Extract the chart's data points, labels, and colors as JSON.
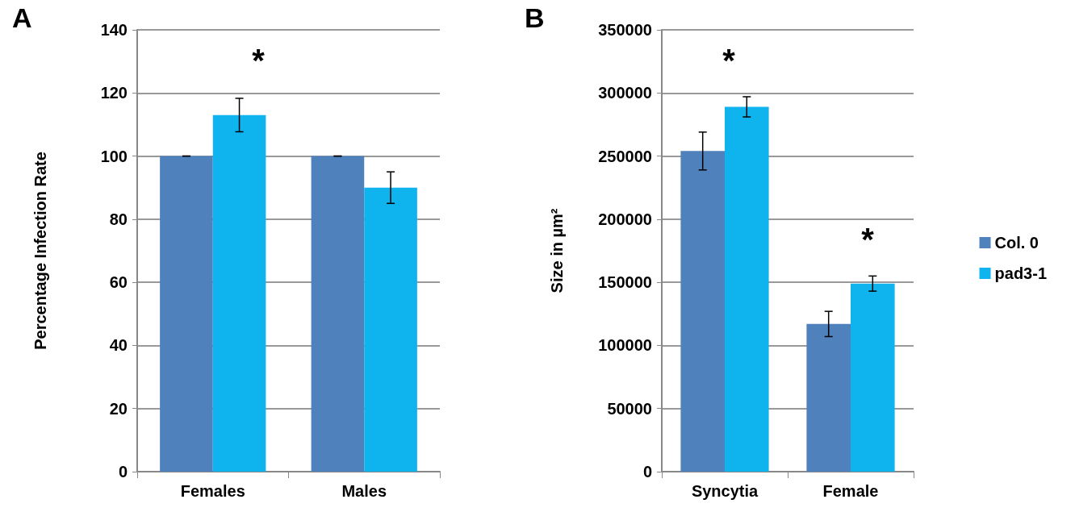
{
  "chart_data": [
    {
      "type": "bar",
      "title": "A",
      "ylabel": "Percentage Infection Rate",
      "categories": [
        "Females",
        "Males"
      ],
      "series": [
        {
          "color": "#4f81bd",
          "values": [
            100,
            100
          ],
          "errors": [
            0,
            0
          ]
        },
        {
          "color": "#0fb3ee",
          "values": [
            113,
            90
          ],
          "errors": [
            5.3,
            5
          ]
        }
      ],
      "ylim": [
        0,
        140
      ],
      "yticks": [
        0,
        20,
        40,
        60,
        80,
        100,
        120,
        140
      ],
      "grid": "y",
      "legend": false,
      "annotations": [
        "*"
      ]
    },
    {
      "type": "bar",
      "title": "B",
      "ylabel": "Size in µm²",
      "categories": [
        "Syncytia",
        "Female"
      ],
      "series": [
        {
          "name": "Col. 0",
          "color": "#4f81bd",
          "values": [
            254000,
            117000
          ],
          "errors": [
            15000,
            10000
          ]
        },
        {
          "name": "pad3-1",
          "color": "#0fb3ee",
          "values": [
            289000,
            149000
          ],
          "errors": [
            8000,
            6000
          ]
        }
      ],
      "ylim": [
        0,
        350000
      ],
      "yticks": [
        0,
        50000,
        100000,
        150000,
        200000,
        250000,
        300000,
        350000
      ],
      "grid": "y",
      "legend": "right",
      "annotations": [
        "*",
        "*"
      ]
    }
  ]
}
